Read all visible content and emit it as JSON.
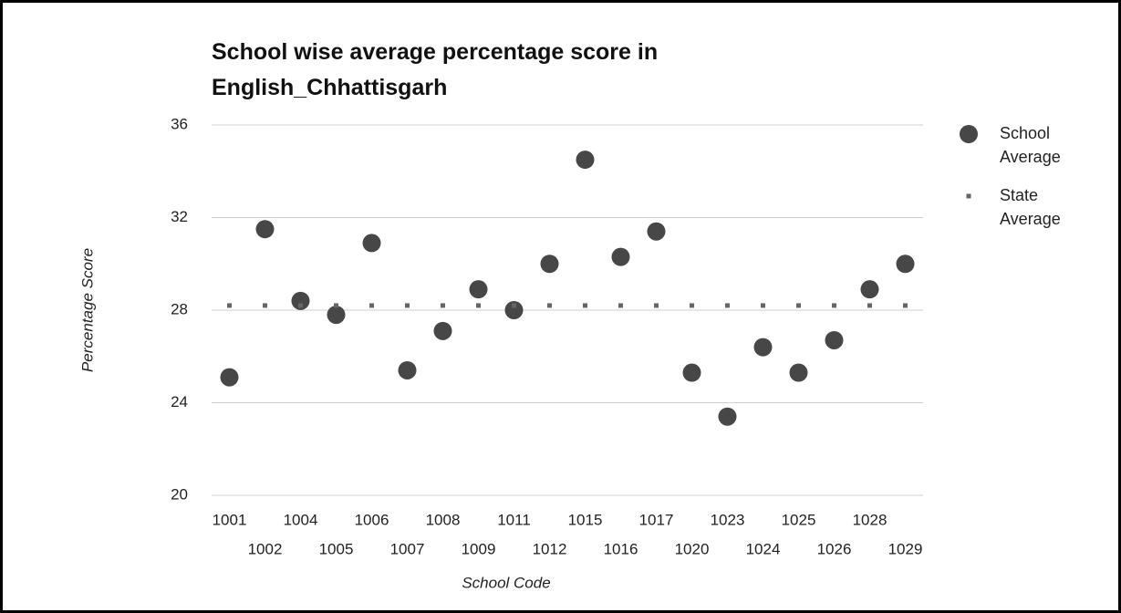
{
  "chart_data": {
    "type": "scatter",
    "title": "School wise average percentage score in English_Chhattisgarh",
    "x_label": "School Code",
    "y_label": "Percentage Score",
    "categories": [
      "1001",
      "1002",
      "1004",
      "1005",
      "1006",
      "1007",
      "1008",
      "1009",
      "1011",
      "1012",
      "1015",
      "1016",
      "1017",
      "1020",
      "1023",
      "1024",
      "1025",
      "1026",
      "1028",
      "1029"
    ],
    "series": [
      {
        "name": "School Average",
        "color": "#474747",
        "values": [
          25.1,
          31.5,
          28.4,
          27.8,
          30.9,
          25.4,
          27.1,
          28.9,
          28.0,
          30.0,
          34.5,
          30.3,
          31.4,
          25.3,
          23.4,
          26.4,
          25.3,
          26.7,
          28.9,
          30.0
        ]
      },
      {
        "name": "State Average",
        "color": "#666666",
        "values": [
          28.2,
          28.2,
          28.2,
          28.2,
          28.2,
          28.2,
          28.2,
          28.2,
          28.2,
          28.2,
          28.2,
          28.2,
          28.2,
          28.2,
          28.2,
          28.2,
          28.2,
          28.2,
          28.2,
          28.2
        ]
      }
    ],
    "ylim": [
      20,
      36
    ],
    "yticks": [
      20,
      24,
      28,
      32,
      36
    ],
    "grid": true,
    "legend": "right"
  }
}
